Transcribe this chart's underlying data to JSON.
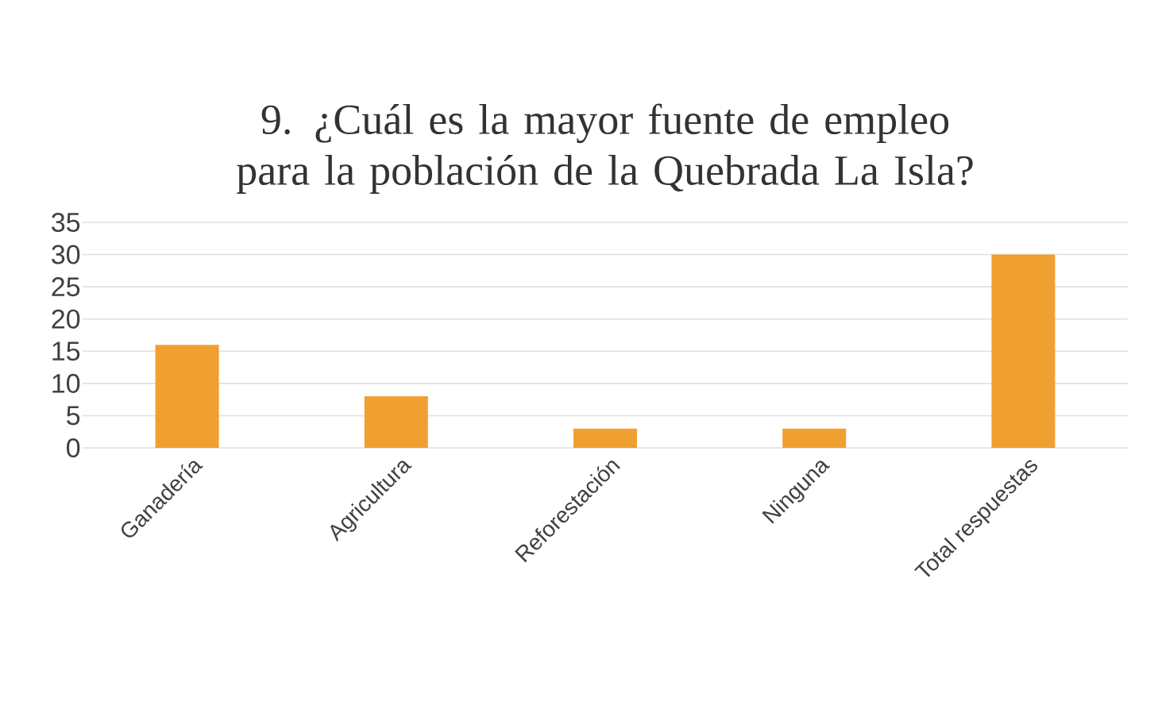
{
  "chart_data": {
    "type": "bar",
    "title": "9. ¿Cuál es la mayor fuente de empleo para la población de la Quebrada La Isla?",
    "categories": [
      "Ganadería",
      "Agricultura",
      "Reforestación",
      "Ninguna",
      "Total respuestas"
    ],
    "values": [
      16,
      8,
      3,
      3,
      30
    ],
    "color": "#f0a030",
    "ylim": [
      0,
      35
    ],
    "yticks": [
      0,
      5,
      10,
      15,
      20,
      25,
      30,
      35
    ],
    "grid": "y"
  }
}
